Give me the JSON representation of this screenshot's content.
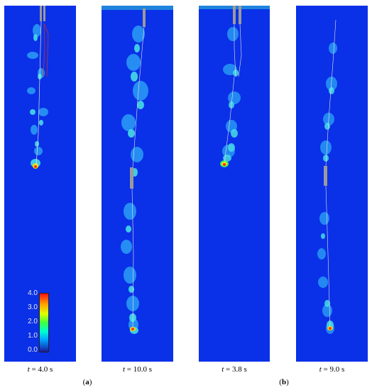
{
  "panels": [
    {
      "time_value": "4.0 s"
    },
    {
      "time_value": "10.0 s"
    },
    {
      "time_value": "3.8 s"
    },
    {
      "time_value": "9.0 s"
    }
  ],
  "time_prefix": "t = ",
  "groups": {
    "a": "a",
    "b": "b"
  },
  "colorbar": {
    "ticks": [
      "4.0",
      "3.0",
      "2.0",
      "1.0",
      "0.0"
    ],
    "colors": [
      "#1a1a9a",
      "#00a0ff",
      "#00ffd0",
      "#40ff40",
      "#e0ff00",
      "#ffa000",
      "#ff1010"
    ]
  },
  "colors": {
    "background_field": "#0a30e8",
    "wake_light": "#3fd8e8",
    "wake_mid": "#22a6f2",
    "hot_spot": "#ff3010",
    "equipment": "#9a9a9a"
  }
}
